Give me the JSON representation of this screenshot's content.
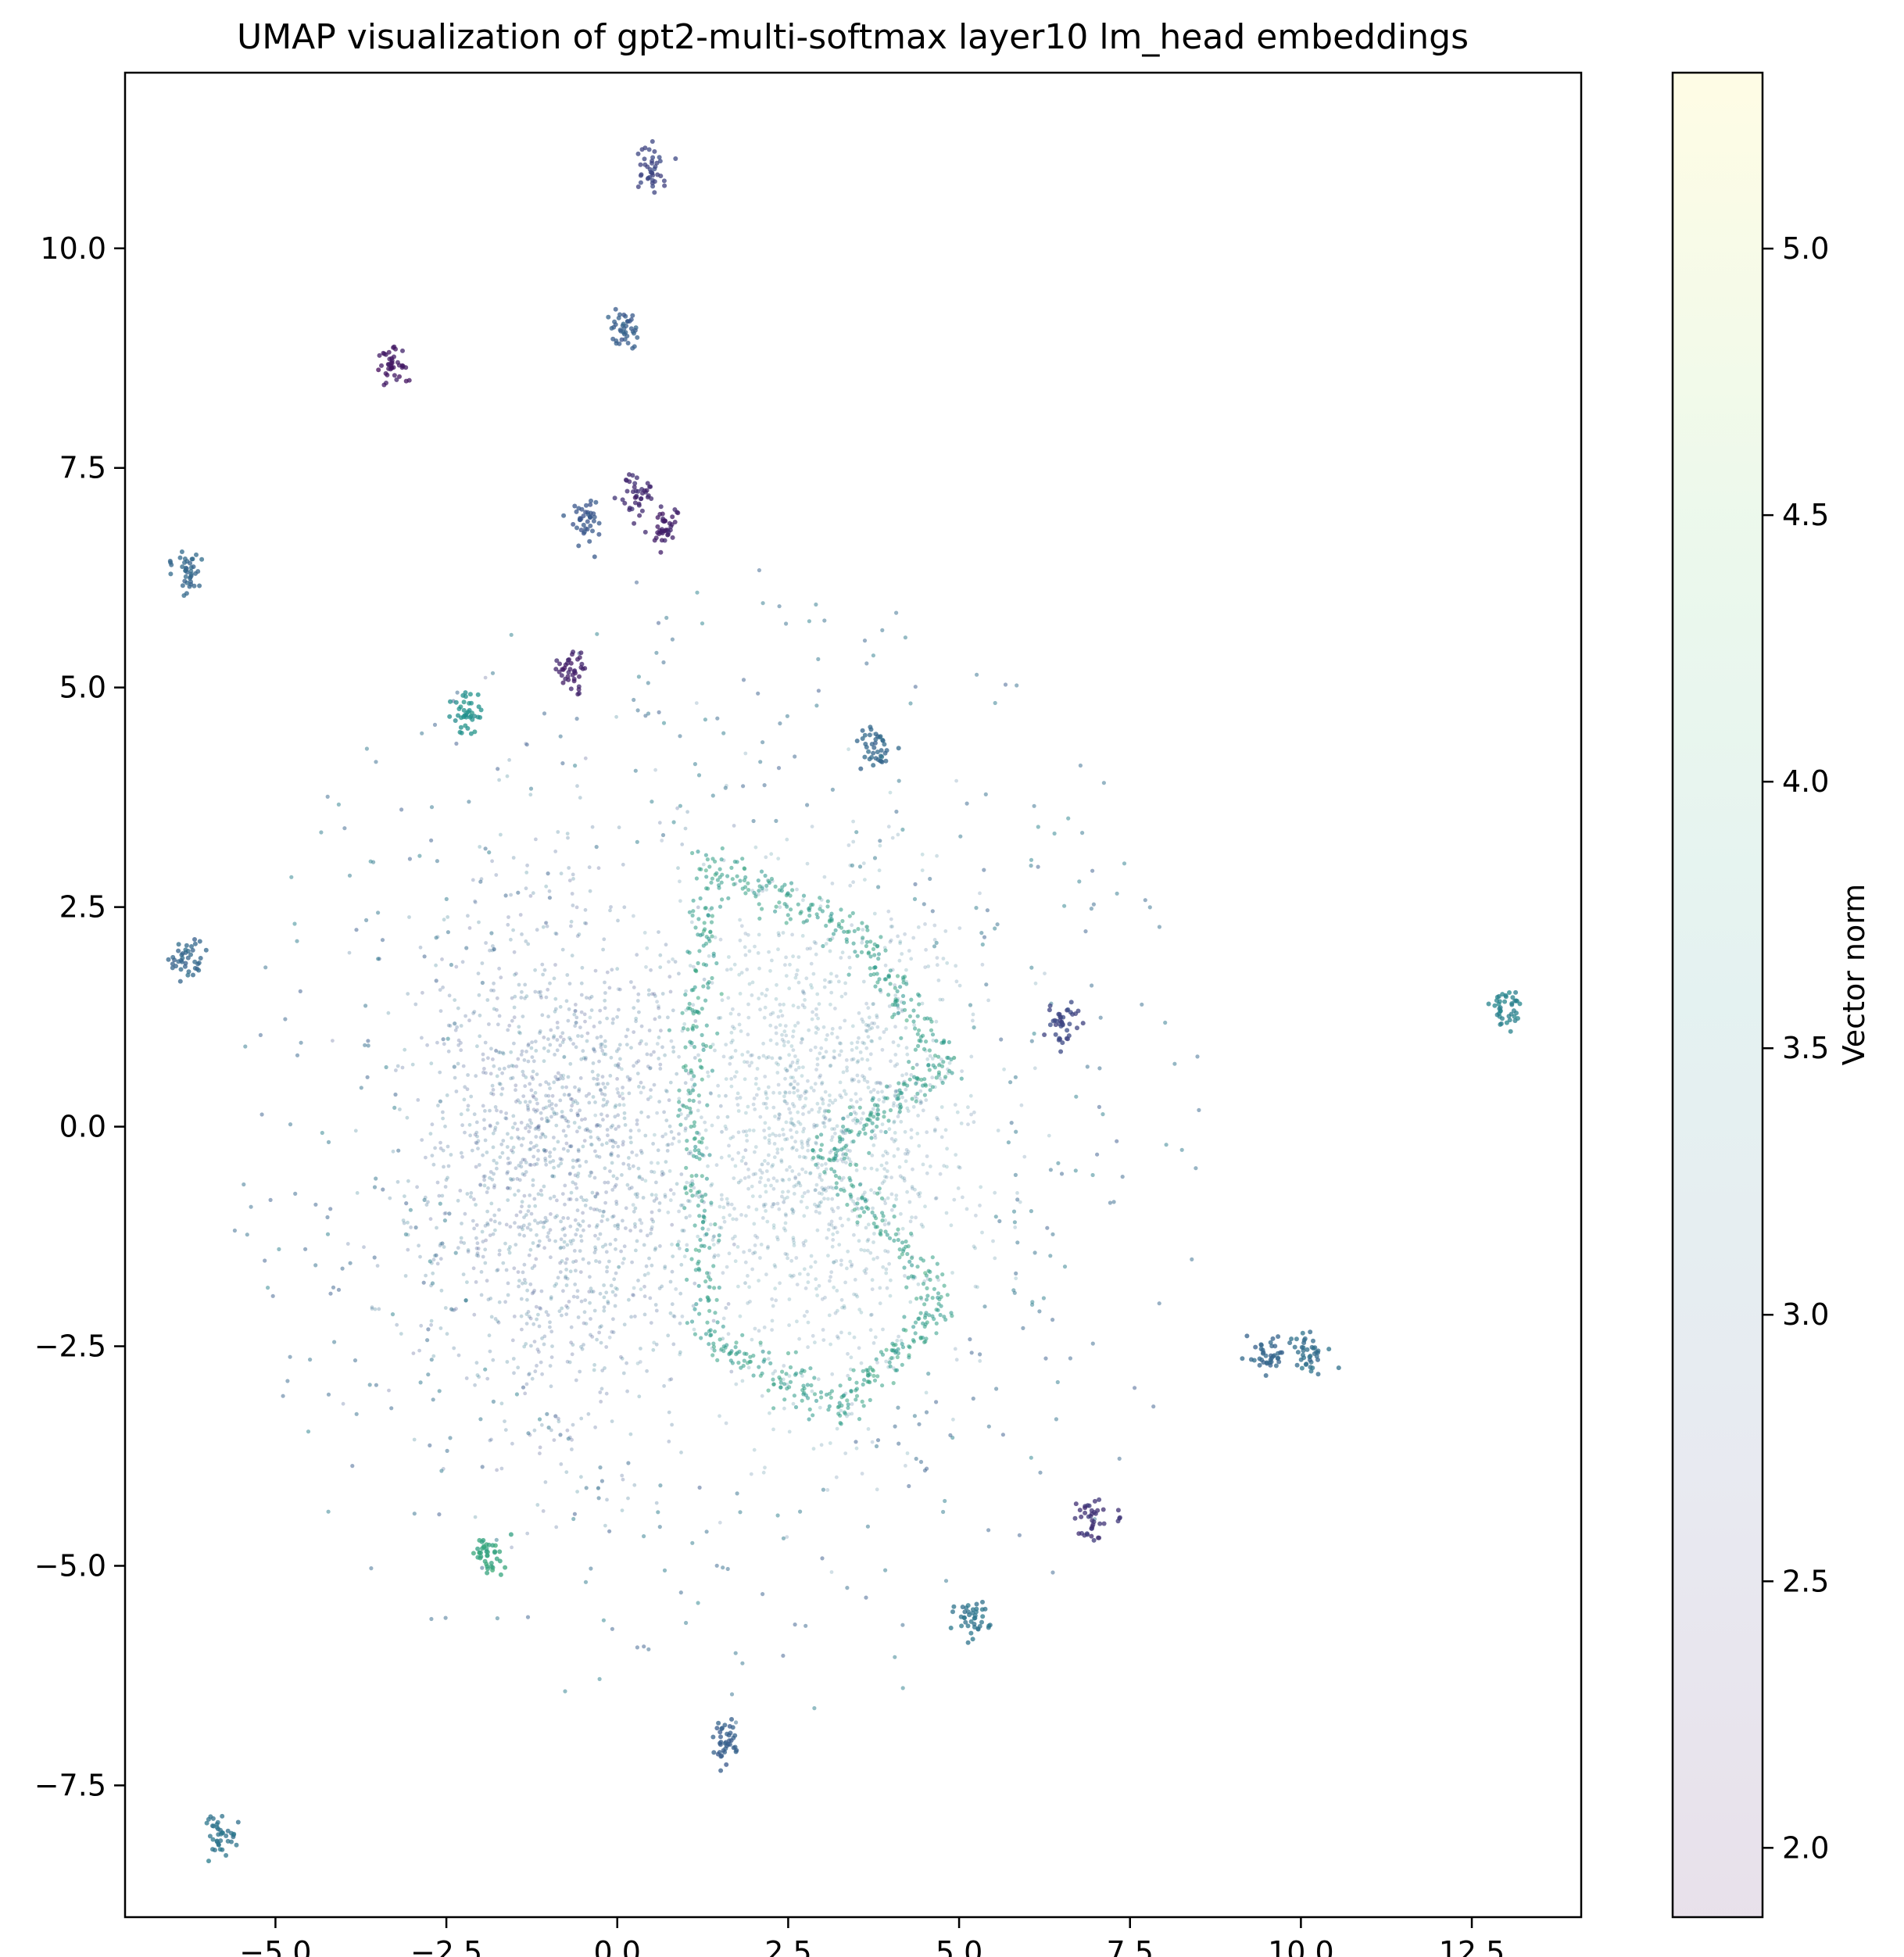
{
  "chart_data": {
    "type": "scatter",
    "title": "UMAP visualization of gpt2-multi-softmax layer10 lm_head embeddings",
    "xlabel": "",
    "ylabel": "",
    "xlim": [
      -7.2,
      14.1
    ],
    "ylim": [
      -9.0,
      12.0
    ],
    "xticks": [
      -5.0,
      -2.5,
      0.0,
      2.5,
      5.0,
      7.5,
      10.0,
      12.5
    ],
    "xtick_labels": [
      "−5.0",
      "−2.5",
      "0.0",
      "2.5",
      "5.0",
      "7.5",
      "10.0",
      "12.5"
    ],
    "yticks": [
      -7.5,
      -5.0,
      -2.5,
      0.0,
      2.5,
      5.0,
      7.5,
      10.0
    ],
    "ytick_labels": [
      "−7.5",
      "−5.0",
      "−2.5",
      "0.0",
      "2.5",
      "5.0",
      "7.5",
      "10.0"
    ],
    "grid": false,
    "colorbar": {
      "label": "Vector norm",
      "colormap": "viridis",
      "range": [
        1.87,
        5.33
      ],
      "ticks": [
        2.0,
        2.5,
        3.0,
        3.5,
        4.0,
        4.5,
        5.0
      ],
      "tick_labels": [
        "2.0",
        "2.5",
        "3.0",
        "3.5",
        "4.0",
        "4.5",
        "5.0"
      ],
      "colors": [
        "#440154",
        "#3b528b",
        "#21918c",
        "#5ec962",
        "#fde725"
      ]
    },
    "clusters": [
      {
        "x": 0.5,
        "y": 10.9,
        "value": 2.6
      },
      {
        "x": 0.1,
        "y": 9.05,
        "value": 2.9
      },
      {
        "x": -3.3,
        "y": 8.7,
        "value": 2.1
      },
      {
        "x": -0.45,
        "y": 6.9,
        "value": 2.8
      },
      {
        "x": 0.3,
        "y": 7.2,
        "value": 2.3
      },
      {
        "x": 0.7,
        "y": 6.8,
        "value": 2.2
      },
      {
        "x": -0.7,
        "y": 5.2,
        "value": 2.2
      },
      {
        "x": -2.2,
        "y": 4.7,
        "value": 3.6
      },
      {
        "x": -6.3,
        "y": 6.3,
        "value": 3.0
      },
      {
        "x": -6.3,
        "y": 1.9,
        "value": 3.0
      },
      {
        "x": 13.0,
        "y": 1.35,
        "value": 3.4
      },
      {
        "x": -5.8,
        "y": -8.05,
        "value": 3.2
      },
      {
        "x": 1.6,
        "y": -7.0,
        "value": 2.9
      },
      {
        "x": 9.5,
        "y": -2.6,
        "value": 3.0
      },
      {
        "x": 10.1,
        "y": -2.55,
        "value": 3.1
      },
      {
        "x": 3.8,
        "y": 4.3,
        "value": 3.0
      },
      {
        "x": -1.9,
        "y": -4.9,
        "value": 3.9
      },
      {
        "x": 6.95,
        "y": -4.45,
        "value": 2.4
      },
      {
        "x": 6.5,
        "y": 1.2,
        "value": 2.6
      },
      {
        "x": 5.2,
        "y": -5.6,
        "value": 3.2
      },
      {
        "x": 1.35,
        "y": 3.0,
        "value": 3.8,
        "label": "ring"
      },
      {
        "x": 3.5,
        "y": 2.2,
        "value": 3.8,
        "label": "ring"
      },
      {
        "x": 4.8,
        "y": 0.7,
        "value": 3.8,
        "label": "ring"
      },
      {
        "x": 3.0,
        "y": -0.3,
        "value": 3.8,
        "label": "ring"
      },
      {
        "x": 4.8,
        "y": -2.0,
        "value": 3.8,
        "label": "ring"
      },
      {
        "x": 3.3,
        "y": -3.2,
        "value": 3.8,
        "label": "ring"
      },
      {
        "x": 1.3,
        "y": -2.4,
        "value": 3.8,
        "label": "ring"
      },
      {
        "x": 1.1,
        "y": 0.5,
        "value": 3.8,
        "label": "ring"
      }
    ]
  }
}
